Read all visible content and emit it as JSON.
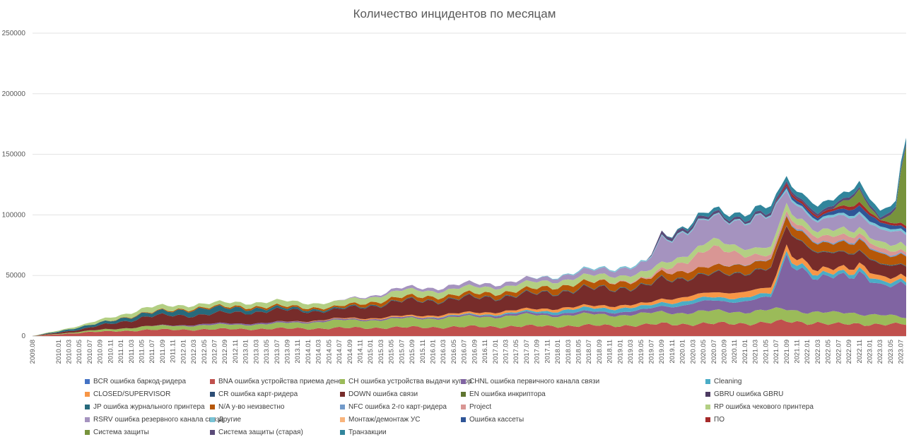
{
  "chart_data": {
    "type": "area",
    "stacked": true,
    "title": "Количество инцидентов по месяцам",
    "xlabel": "",
    "ylabel": "",
    "ylim": [
      0,
      250000
    ],
    "yticks": [
      "0",
      "50000",
      "100000",
      "150000",
      "200000",
      "250000"
    ],
    "ytick_values": [
      0,
      50000,
      100000,
      150000,
      200000,
      250000
    ],
    "grid": true,
    "legend_position": "bottom",
    "x_start": "2009.08",
    "x_end": "2023.08",
    "xtick_labels": [
      "2009.08",
      "2010.01",
      "2010.03",
      "2010.05",
      "2010.07",
      "2010.09",
      "2010.11",
      "2011.01",
      "2011.03",
      "2011.05",
      "2011.07",
      "2011.09",
      "2011.11",
      "2012.01",
      "2012.03",
      "2012.05",
      "2012.07",
      "2012.09",
      "2012.11",
      "2013.01",
      "2013.03",
      "2013.05",
      "2013.07",
      "2013.09",
      "2013.11",
      "2014.01",
      "2014.03",
      "2014.05",
      "2014.07",
      "2014.09",
      "2014.11",
      "2015.01",
      "2015.03",
      "2015.05",
      "2015.07",
      "2015.09",
      "2015.11",
      "2016.01",
      "2016.03",
      "2016.05",
      "2016.07",
      "2016.09",
      "2016.11",
      "2017.01",
      "2017.03",
      "2017.05",
      "2017.07",
      "2017.09",
      "2017.11",
      "2018.01",
      "2018.03",
      "2018.05",
      "2018.07",
      "2018.09",
      "2018.11",
      "2019.01",
      "2019.03",
      "2019.05",
      "2019.07",
      "2019.09",
      "2019.11",
      "2020.01",
      "2020.03",
      "2020.05",
      "2020.07",
      "2020.09",
      "2020.11",
      "2021.01",
      "2021.03",
      "2021.05",
      "2021.07",
      "2021.09",
      "2021.11",
      "2022.01",
      "2022.03",
      "2022.05",
      "2022.07",
      "2022.09",
      "2022.11",
      "2023.01",
      "2023.03",
      "2023.05",
      "2023.07"
    ],
    "key_months": [
      "2009.08",
      "2010.06",
      "2011.06",
      "2012.06",
      "2013.06",
      "2014.06",
      "2015.06",
      "2016.06",
      "2017.06",
      "2018.06",
      "2019.06",
      "2019.09",
      "2020.06",
      "2021.06",
      "2021.09",
      "2022.03",
      "2022.06",
      "2022.11",
      "2023.03",
      "2023.06",
      "2023.08"
    ],
    "series": [
      {
        "name": "BCR  ошибка баркод-ридера",
        "color": "#4472C4",
        "values": [
          0,
          0,
          0,
          0,
          0,
          0,
          0,
          0,
          0,
          0,
          0,
          0,
          0,
          0,
          0,
          0,
          0,
          0,
          0,
          0,
          0
        ]
      },
      {
        "name": "BNA ошибка устройства приема денег",
        "color": "#C0504D",
        "values": [
          0,
          3000,
          5000,
          5500,
          6000,
          6500,
          7000,
          7500,
          8000,
          8500,
          9000,
          10000,
          10000,
          11000,
          12000,
          11000,
          9500,
          10000,
          10000,
          9500,
          9500
        ]
      },
      {
        "name": "CH ошибка устройства выдачи купюр",
        "color": "#9BBB59",
        "values": [
          0,
          1000,
          3000,
          3500,
          4000,
          6000,
          7000,
          8000,
          9000,
          9000,
          9000,
          9500,
          10000,
          10000,
          10000,
          9000,
          9000,
          9000,
          8000,
          6000,
          5000
        ]
      },
      {
        "name": "CHNL ошибка первичного канала связи",
        "color": "#8064A2",
        "values": [
          0,
          0,
          0,
          1000,
          1000,
          1000,
          1000,
          1000,
          1500,
          2000,
          3000,
          5000,
          8000,
          10000,
          45000,
          25000,
          30000,
          35000,
          22000,
          25000,
          30000
        ]
      },
      {
        "name": "Cleaning",
        "color": "#4BACC6",
        "values": [
          0,
          0,
          0,
          0,
          0,
          0,
          0,
          500,
          1000,
          3000,
          3000,
          3000,
          3000,
          3000,
          3500,
          3000,
          3000,
          3000,
          3000,
          3000,
          3000
        ]
      },
      {
        "name": "CLOSED/SUPERVISOR",
        "color": "#F79646",
        "values": [
          0,
          0,
          0,
          0,
          0,
          500,
          1000,
          1500,
          2000,
          2000,
          2500,
          3000,
          4000,
          5000,
          5000,
          4000,
          4000,
          4000,
          4000,
          4000,
          4000
        ]
      },
      {
        "name": "CR ошибка карт-ридера",
        "color": "#2C4D75",
        "values": [
          0,
          0,
          0,
          0,
          0,
          0,
          0,
          0,
          0,
          0,
          0,
          0,
          0,
          0,
          0,
          0,
          0,
          0,
          0,
          0,
          0
        ]
      },
      {
        "name": "DOWN ошибка связи",
        "color": "#772C2A",
        "values": [
          0,
          2000,
          8000,
          8000,
          10000,
          7000,
          12000,
          12000,
          12000,
          14000,
          14000,
          16000,
          15000,
          16000,
          16000,
          15000,
          12000,
          11000,
          11000,
          9000,
          8000
        ]
      },
      {
        "name": "EN ошибка инкриптора",
        "color": "#5F7530",
        "values": [
          0,
          0,
          0,
          0,
          0,
          0,
          0,
          0,
          0,
          0,
          0,
          0,
          0,
          0,
          0,
          0,
          0,
          0,
          0,
          0,
          0
        ]
      },
      {
        "name": "GBRU ошибка GBRU",
        "color": "#4D3B62",
        "values": [
          0,
          0,
          0,
          0,
          0,
          0,
          0,
          0,
          0,
          0,
          0,
          0,
          0,
          0,
          0,
          0,
          0,
          0,
          0,
          0,
          0
        ]
      },
      {
        "name": "JP ошибка журнального принтера",
        "color": "#276A7C",
        "values": [
          0,
          2000,
          3000,
          5000,
          2000,
          1000,
          500,
          500,
          500,
          500,
          500,
          500,
          500,
          500,
          500,
          500,
          500,
          500,
          500,
          500,
          500
        ]
      },
      {
        "name": "N/A у-во неизвестно",
        "color": "#B65708",
        "values": [
          0,
          0,
          500,
          1000,
          1500,
          1500,
          3000,
          3000,
          3500,
          5000,
          5000,
          5000,
          6000,
          7000,
          7000,
          7000,
          8000,
          8000,
          8000,
          8000,
          8000
        ]
      },
      {
        "name": "NFC ошибка 2-го карт-ридера",
        "color": "#729ACA",
        "values": [
          0,
          0,
          0,
          0,
          0,
          0,
          0,
          0,
          0,
          0,
          0,
          0,
          0,
          500,
          1000,
          1000,
          1000,
          1000,
          1000,
          1000,
          1000
        ]
      },
      {
        "name": "Project",
        "color": "#D99694",
        "values": [
          0,
          0,
          0,
          0,
          0,
          0,
          0,
          0,
          0,
          0,
          1000,
          2000,
          15000,
          3000,
          3000,
          5000,
          5000,
          4000,
          4000,
          3000,
          2000
        ]
      },
      {
        "name": "RP ошибка чекового принтера",
        "color": "#B3CF83",
        "values": [
          0,
          1500,
          4000,
          3000,
          4000,
          4000,
          5000,
          5000,
          5000,
          5000,
          5000,
          5000,
          6000,
          6000,
          6000,
          5000,
          5000,
          5000,
          5000,
          5000,
          5000
        ]
      },
      {
        "name": "RSRV ошибка резервного канала связи",
        "color": "#A593BF",
        "values": [
          0,
          0,
          0,
          0,
          0,
          0,
          2000,
          3000,
          3000,
          4000,
          7000,
          20000,
          18000,
          25000,
          12000,
          7000,
          10000,
          12000,
          10000,
          10000,
          10000
        ]
      },
      {
        "name": "Другие",
        "color": "#79C4D6",
        "values": [
          0,
          0,
          0,
          0,
          0,
          0,
          0,
          0,
          0,
          1000,
          1000,
          1000,
          1000,
          1000,
          2000,
          1500,
          2000,
          2000,
          2000,
          2000,
          2000
        ]
      },
      {
        "name": "Монтаж/демонтаж УС",
        "color": "#F9B47C",
        "values": [
          0,
          0,
          0,
          0,
          0,
          0,
          0,
          0,
          0,
          0,
          0,
          0,
          0,
          0,
          0,
          0,
          0,
          0,
          0,
          0,
          0
        ]
      },
      {
        "name": "Ошибка кассеты",
        "color": "#2F5597",
        "values": [
          0,
          0,
          0,
          0,
          0,
          0,
          0,
          0,
          0,
          0,
          0,
          0,
          0,
          0,
          2000,
          2000,
          3000,
          5000,
          4000,
          3000,
          3000
        ]
      },
      {
        "name": "ПО",
        "color": "#A52A2A",
        "values": [
          0,
          0,
          0,
          0,
          0,
          0,
          0,
          0,
          0,
          0,
          0,
          0,
          0,
          0,
          2000,
          2000,
          2000,
          3000,
          2000,
          2000,
          2000
        ]
      },
      {
        "name": "Система защиты",
        "color": "#77933C",
        "values": [
          0,
          0,
          0,
          0,
          0,
          0,
          0,
          0,
          0,
          0,
          0,
          0,
          0,
          0,
          0,
          0,
          0,
          10000,
          0,
          10000,
          70000
        ]
      },
      {
        "name": "Система защиты (старая)",
        "color": "#5A4A78",
        "values": [
          0,
          0,
          0,
          0,
          0,
          0,
          0,
          0,
          0,
          0,
          0,
          3000,
          2000,
          2000,
          2000,
          2000,
          2000,
          2000,
          2000,
          2000,
          2000
        ]
      },
      {
        "name": "Транзакции",
        "color": "#31859C",
        "values": [
          0,
          0,
          0,
          0,
          0,
          0,
          0,
          0,
          0,
          0,
          0,
          0,
          3000,
          5000,
          4000,
          6000,
          5000,
          5000,
          5000,
          5000,
          5000
        ]
      }
    ]
  }
}
